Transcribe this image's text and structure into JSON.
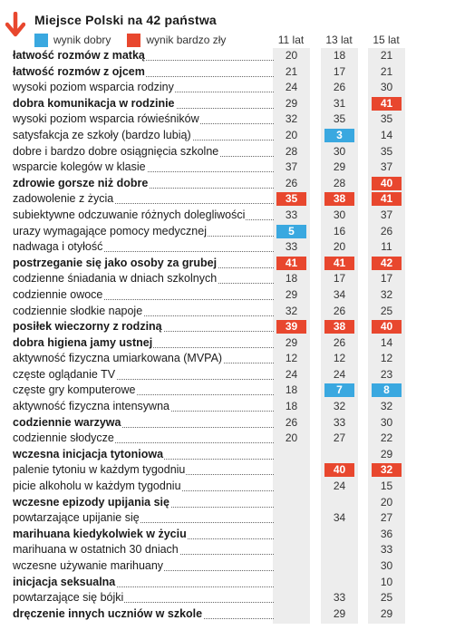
{
  "title": "Miejsce Polski na 42 państwa",
  "legend": {
    "good_label": "wynik dobry",
    "bad_label": "wynik bardzo zły",
    "good_color": "#3aa8e0",
    "bad_color": "#e8472e"
  },
  "columns": [
    "11 lat",
    "13 lat",
    "15 lat"
  ],
  "chart_data": {
    "type": "table",
    "title": "Miejsce Polski na 42 państwa",
    "columns": [
      "11 lat",
      "13 lat",
      "15 lat"
    ],
    "rows": [
      {
        "label": "łatwość rozmów z matką",
        "bold": true,
        "values": [
          20,
          18,
          21
        ],
        "flags": [
          "",
          "",
          ""
        ]
      },
      {
        "label": "łatwość rozmów z ojcem",
        "bold": true,
        "values": [
          21,
          17,
          21
        ],
        "flags": [
          "",
          "",
          ""
        ]
      },
      {
        "label": "wysoki poziom wsparcia rodziny",
        "bold": false,
        "values": [
          24,
          26,
          30
        ],
        "flags": [
          "",
          "",
          ""
        ]
      },
      {
        "label": "dobra komunikacja w rodzinie",
        "bold": true,
        "values": [
          29,
          31,
          41
        ],
        "flags": [
          "",
          "",
          "bad"
        ]
      },
      {
        "label": "wysoki poziom wsparcia rówieśników",
        "bold": false,
        "values": [
          32,
          35,
          35
        ],
        "flags": [
          "",
          "",
          ""
        ]
      },
      {
        "label": "satysfakcja ze szkoły (bardzo lubią)",
        "bold": false,
        "values": [
          20,
          3,
          14
        ],
        "flags": [
          "",
          "good",
          ""
        ]
      },
      {
        "label": "dobre i bardzo dobre osiągnięcia szkolne",
        "bold": false,
        "values": [
          28,
          30,
          35
        ],
        "flags": [
          "",
          "",
          ""
        ]
      },
      {
        "label": "wsparcie kolegów w klasie",
        "bold": false,
        "values": [
          37,
          29,
          37
        ],
        "flags": [
          "",
          "",
          ""
        ]
      },
      {
        "label": "zdrowie gorsze niż dobre",
        "bold": true,
        "values": [
          26,
          28,
          40
        ],
        "flags": [
          "",
          "",
          "bad"
        ]
      },
      {
        "label": "zadowolenie z życia",
        "bold": false,
        "values": [
          35,
          38,
          41
        ],
        "flags": [
          "bad",
          "bad",
          "bad"
        ]
      },
      {
        "label": "subiektywne odczuwanie różnych dolegliwości",
        "bold": false,
        "values": [
          33,
          30,
          37
        ],
        "flags": [
          "",
          "",
          ""
        ]
      },
      {
        "label": "urazy wymagające pomocy medycznej",
        "bold": false,
        "values": [
          5,
          16,
          26
        ],
        "flags": [
          "good",
          "",
          ""
        ]
      },
      {
        "label": "nadwaga i otyłość",
        "bold": false,
        "values": [
          33,
          20,
          11
        ],
        "flags": [
          "",
          "",
          ""
        ]
      },
      {
        "label": "postrzeganie się jako osoby za grubej",
        "bold": true,
        "values": [
          41,
          41,
          42
        ],
        "flags": [
          "bad",
          "bad",
          "bad"
        ]
      },
      {
        "label": "codzienne śniadania w dniach szkolnych",
        "bold": false,
        "values": [
          18,
          17,
          17
        ],
        "flags": [
          "",
          "",
          ""
        ]
      },
      {
        "label": "codziennie owoce",
        "bold": false,
        "values": [
          29,
          34,
          32
        ],
        "flags": [
          "",
          "",
          ""
        ]
      },
      {
        "label": "codziennie słodkie napoje",
        "bold": false,
        "values": [
          32,
          26,
          25
        ],
        "flags": [
          "",
          "",
          ""
        ]
      },
      {
        "label": "posiłek wieczorny z rodziną",
        "bold": true,
        "values": [
          39,
          38,
          40
        ],
        "flags": [
          "bad",
          "bad",
          "bad"
        ]
      },
      {
        "label": "dobra higiena jamy ustnej",
        "bold": true,
        "values": [
          29,
          26,
          14
        ],
        "flags": [
          "",
          "",
          ""
        ]
      },
      {
        "label": "aktywność fizyczna umiarkowana (MVPA)",
        "bold": false,
        "values": [
          12,
          12,
          12
        ],
        "flags": [
          "",
          "",
          ""
        ]
      },
      {
        "label": "częste oglądanie TV",
        "bold": false,
        "values": [
          24,
          24,
          23
        ],
        "flags": [
          "",
          "",
          ""
        ]
      },
      {
        "label": "częste gry komputerowe",
        "bold": false,
        "values": [
          18,
          7,
          8
        ],
        "flags": [
          "",
          "good",
          "good"
        ]
      },
      {
        "label": "aktywność fizyczna intensywna",
        "bold": false,
        "values": [
          18,
          32,
          32
        ],
        "flags": [
          "",
          "",
          ""
        ]
      },
      {
        "label": "codziennie warzywa",
        "bold": true,
        "values": [
          26,
          33,
          30
        ],
        "flags": [
          "",
          "",
          ""
        ]
      },
      {
        "label": "codziennie słodycze",
        "bold": false,
        "values": [
          20,
          27,
          22
        ],
        "flags": [
          "",
          "",
          ""
        ]
      },
      {
        "label": "wczesna inicjacja tytoniowa",
        "bold": true,
        "values": [
          null,
          null,
          29
        ],
        "flags": [
          "",
          "",
          ""
        ]
      },
      {
        "label": "palenie tytoniu w każdym tygodniu",
        "bold": false,
        "values": [
          null,
          40,
          32
        ],
        "flags": [
          "",
          "bad",
          "bad"
        ]
      },
      {
        "label": "picie alkoholu w każdym tygodniu",
        "bold": false,
        "values": [
          null,
          24,
          15
        ],
        "flags": [
          "",
          "",
          ""
        ]
      },
      {
        "label": "wczesne epizody upijania się",
        "bold": true,
        "values": [
          null,
          null,
          20
        ],
        "flags": [
          "",
          "",
          ""
        ]
      },
      {
        "label": "powtarzające upijanie się",
        "bold": false,
        "values": [
          null,
          34,
          27
        ],
        "flags": [
          "",
          "",
          ""
        ]
      },
      {
        "label": "marihuana kiedykolwiek w życiu",
        "bold": true,
        "values": [
          null,
          null,
          36
        ],
        "flags": [
          "",
          "",
          ""
        ]
      },
      {
        "label": "marihuana w ostatnich 30 dniach",
        "bold": false,
        "values": [
          null,
          null,
          33
        ],
        "flags": [
          "",
          "",
          ""
        ]
      },
      {
        "label": "wczesne używanie marihuany",
        "bold": false,
        "values": [
          null,
          null,
          30
        ],
        "flags": [
          "",
          "",
          ""
        ]
      },
      {
        "label": "inicjacja seksualna",
        "bold": true,
        "values": [
          null,
          null,
          10
        ],
        "flags": [
          "",
          "",
          ""
        ]
      },
      {
        "label": "powtarzające się bójki",
        "bold": false,
        "values": [
          null,
          33,
          25
        ],
        "flags": [
          "",
          "",
          ""
        ]
      },
      {
        "label": "dręczenie innych uczniów w szkole",
        "bold": true,
        "values": [
          null,
          29,
          29
        ],
        "flags": [
          "",
          "",
          ""
        ]
      }
    ]
  }
}
